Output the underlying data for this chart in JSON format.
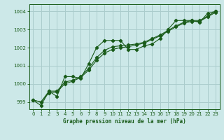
{
  "title": "Graphe pression niveau de la mer (hPa)",
  "bg_color": "#cce8e8",
  "grid_color": "#aacccc",
  "line_color": "#1a5c1a",
  "xlim": [
    -0.5,
    23.5
  ],
  "ylim": [
    998.6,
    1004.4
  ],
  "yticks": [
    999,
    1000,
    1001,
    1002,
    1003,
    1004
  ],
  "xticks": [
    0,
    1,
    2,
    3,
    4,
    5,
    6,
    7,
    8,
    9,
    10,
    11,
    12,
    13,
    14,
    15,
    16,
    17,
    18,
    19,
    20,
    21,
    22,
    23
  ],
  "line1_x": [
    0,
    1,
    2,
    3,
    4,
    5,
    6,
    7,
    8,
    9,
    10,
    11,
    12,
    13,
    14,
    15,
    16,
    17,
    18,
    19,
    20,
    21,
    22,
    23
  ],
  "line1_y": [
    999.1,
    998.8,
    999.6,
    999.3,
    1000.4,
    1000.4,
    1000.3,
    1001.1,
    1002.0,
    1002.4,
    1002.4,
    1002.4,
    1001.9,
    1001.9,
    1002.1,
    1002.2,
    1002.5,
    1003.0,
    1003.5,
    1003.5,
    1003.5,
    1003.4,
    1003.9,
    1004.0
  ],
  "line2_x": [
    0,
    1,
    2,
    3,
    4,
    5,
    6,
    7,
    8,
    9,
    10,
    11,
    12,
    13,
    14,
    15,
    16,
    17,
    18,
    19,
    20,
    21,
    22,
    23
  ],
  "line2_y": [
    999.1,
    999.0,
    999.6,
    999.6,
    1000.1,
    1000.2,
    1000.4,
    1000.85,
    1001.45,
    1001.85,
    1002.05,
    1002.1,
    1002.15,
    1002.2,
    1002.3,
    1002.5,
    1002.7,
    1002.95,
    1003.2,
    1003.4,
    1003.5,
    1003.5,
    1003.75,
    1004.0
  ],
  "line3_x": [
    0,
    1,
    2,
    3,
    4,
    5,
    6,
    7,
    8,
    9,
    10,
    11,
    12,
    13,
    14,
    15,
    16,
    17,
    18,
    19,
    20,
    21,
    22,
    23
  ],
  "line3_y": [
    999.1,
    999.0,
    999.5,
    999.55,
    1000.0,
    1000.15,
    1000.35,
    1000.75,
    1001.3,
    1001.7,
    1001.9,
    1002.0,
    1002.05,
    1002.15,
    1002.25,
    1002.45,
    1002.65,
    1002.9,
    1003.15,
    1003.35,
    1003.45,
    1003.45,
    1003.7,
    1003.95
  ]
}
